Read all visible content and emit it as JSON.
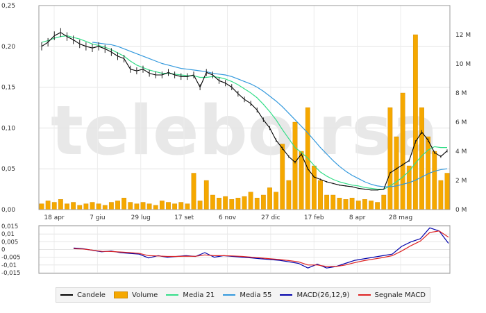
{
  "watermark": "telebo rsa",
  "chart_data": [
    {
      "type": "line",
      "name": "price-panel",
      "x_tick_labels": [
        "18 apr",
        "7 giu",
        "29 lug",
        "17 set",
        "6 nov",
        "27 dic",
        "17 feb",
        "8 apr",
        "28 mag"
      ],
      "y_ticks": [
        "0,25",
        "0,20",
        "0,15",
        "0,10",
        "0,05",
        "0,00"
      ],
      "y_range": [
        0,
        0.25
      ],
      "volume_ticks": [
        "12 M",
        "10 M",
        "8 M",
        "6 M",
        "4 M",
        "2 M",
        "0 M"
      ],
      "volume_range_millions": [
        0,
        14
      ],
      "series": [
        {
          "name": "Candele",
          "color": "#000000",
          "values": [
            0.2,
            0.205,
            0.213,
            0.217,
            0.212,
            0.208,
            0.203,
            0.2,
            0.198,
            0.2,
            0.197,
            0.193,
            0.188,
            0.185,
            0.172,
            0.17,
            0.172,
            0.167,
            0.165,
            0.165,
            0.168,
            0.165,
            0.163,
            0.163,
            0.165,
            0.15,
            0.168,
            0.165,
            0.158,
            0.155,
            0.15,
            0.142,
            0.135,
            0.13,
            0.122,
            0.11,
            0.1,
            0.085,
            0.075,
            0.065,
            0.058,
            0.068,
            0.05,
            0.04,
            0.037,
            0.034,
            0.032,
            0.03,
            0.029,
            0.028,
            0.026,
            0.025,
            0.024,
            0.024,
            0.025,
            0.045,
            0.05,
            0.055,
            0.06,
            0.083,
            0.095,
            0.085,
            0.07,
            0.065,
            0.072
          ]
        },
        {
          "name": "Media 21",
          "color": "#33dd88",
          "values": [
            0.205,
            0.207,
            0.21,
            0.212,
            0.213,
            0.211,
            0.209,
            0.206,
            0.203,
            0.201,
            0.199,
            0.196,
            0.192,
            0.188,
            0.182,
            0.177,
            0.174,
            0.171,
            0.169,
            0.167,
            0.167,
            0.166,
            0.165,
            0.164,
            0.164,
            0.162,
            0.162,
            0.163,
            0.162,
            0.16,
            0.157,
            0.153,
            0.148,
            0.143,
            0.137,
            0.129,
            0.12,
            0.11,
            0.098,
            0.087,
            0.076,
            0.07,
            0.063,
            0.054,
            0.046,
            0.041,
            0.037,
            0.034,
            0.032,
            0.03,
            0.029,
            0.027,
            0.026,
            0.025,
            0.025,
            0.029,
            0.034,
            0.04,
            0.047,
            0.057,
            0.066,
            0.073,
            0.077,
            0.076,
            0.076
          ]
        },
        {
          "name": "Media 55",
          "color": "#3399dd",
          "values": [
            null,
            null,
            null,
            null,
            null,
            null,
            null,
            null,
            0.205,
            0.204,
            0.203,
            0.202,
            0.2,
            0.197,
            0.194,
            0.191,
            0.188,
            0.185,
            0.182,
            0.179,
            0.177,
            0.175,
            0.173,
            0.172,
            0.171,
            0.17,
            0.169,
            0.167,
            0.166,
            0.165,
            0.163,
            0.16,
            0.157,
            0.154,
            0.15,
            0.145,
            0.139,
            0.133,
            0.126,
            0.118,
            0.11,
            0.102,
            0.094,
            0.085,
            0.076,
            0.068,
            0.06,
            0.053,
            0.047,
            0.042,
            0.038,
            0.034,
            0.031,
            0.029,
            0.028,
            0.028,
            0.029,
            0.031,
            0.033,
            0.036,
            0.04,
            0.044,
            0.047,
            0.049,
            0.05
          ]
        },
        {
          "name": "Volume",
          "color": "#f5a800",
          "unit": "M",
          "values": [
            0.4,
            0.6,
            0.5,
            0.7,
            0.4,
            0.5,
            0.3,
            0.4,
            0.5,
            0.4,
            0.3,
            0.5,
            0.6,
            0.8,
            0.5,
            0.4,
            0.5,
            0.4,
            0.3,
            0.6,
            0.5,
            0.4,
            0.5,
            0.4,
            2.5,
            0.6,
            2.0,
            1.0,
            0.8,
            0.9,
            0.7,
            0.8,
            0.9,
            1.2,
            0.8,
            1.0,
            1.5,
            1.2,
            4.5,
            2.0,
            6.0,
            4.0,
            7.0,
            3.0,
            2.0,
            1.0,
            1.0,
            0.8,
            0.7,
            0.8,
            0.6,
            0.7,
            0.6,
            0.5,
            1.0,
            7.0,
            5.0,
            8.0,
            3.0,
            12.0,
            7.0,
            5.0,
            4.0,
            2.0,
            2.5
          ]
        }
      ]
    },
    {
      "type": "line",
      "name": "macd-panel",
      "y_ticks": [
        "0,015",
        "0,01",
        "0,005",
        "0",
        "-0,005",
        "-0,01",
        "-0,015"
      ],
      "y_range": [
        -0.0155,
        0.0155
      ],
      "series": [
        {
          "name": "MACD(26,12,9)",
          "color": "#0000aa",
          "values": [
            0.001,
            0.0005,
            -0.0005,
            -0.0015,
            -0.001,
            -0.002,
            -0.0025,
            -0.003,
            -0.0055,
            -0.004,
            -0.005,
            -0.0045,
            -0.004,
            -0.0045,
            -0.002,
            -0.005,
            -0.004,
            -0.0045,
            -0.005,
            -0.0055,
            -0.006,
            -0.0065,
            -0.007,
            -0.008,
            -0.009,
            -0.012,
            -0.0095,
            -0.012,
            -0.011,
            -0.009,
            -0.007,
            -0.006,
            -0.005,
            -0.004,
            -0.003,
            0.002,
            0.005,
            0.007,
            0.014,
            0.012,
            0.004
          ]
        },
        {
          "name": "Segnale MACD",
          "color": "#dd2222",
          "values": [
            0.0005,
            0.0003,
            -0.0004,
            -0.0012,
            -0.0013,
            -0.0016,
            -0.002,
            -0.0025,
            -0.004,
            -0.0042,
            -0.0045,
            -0.0045,
            -0.0043,
            -0.0044,
            -0.0035,
            -0.004,
            -0.004,
            -0.0042,
            -0.0045,
            -0.005,
            -0.0055,
            -0.006,
            -0.0065,
            -0.0072,
            -0.008,
            -0.01,
            -0.01,
            -0.011,
            -0.011,
            -0.01,
            -0.0085,
            -0.0072,
            -0.0062,
            -0.0052,
            -0.004,
            -0.001,
            0.0025,
            0.0055,
            0.011,
            0.012,
            0.008
          ]
        }
      ]
    }
  ],
  "legend": [
    {
      "label": "Candele",
      "color": "#000000",
      "kind": "line"
    },
    {
      "label": "Volume",
      "color": "#f5a800",
      "kind": "bar"
    },
    {
      "label": "Media 21",
      "color": "#33dd88",
      "kind": "line"
    },
    {
      "label": "Media 55",
      "color": "#3399dd",
      "kind": "line"
    },
    {
      "label": "MACD(26,12,9)",
      "color": "#0000aa",
      "kind": "line"
    },
    {
      "label": "Segnale MACD",
      "color": "#dd2222",
      "kind": "line"
    }
  ]
}
